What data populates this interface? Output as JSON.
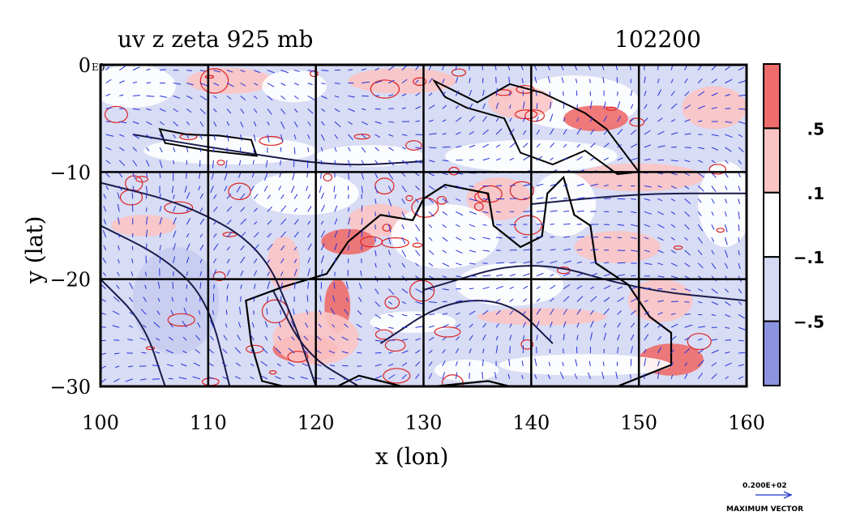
{
  "chart_data": {
    "type": "contour-map",
    "title_left": "uv z zeta 925 mb",
    "title_right": "102200",
    "xlabel": "x (lon)",
    "ylabel": "y (lat)",
    "x_ticks": [
      100,
      110,
      120,
      130,
      140,
      150,
      160
    ],
    "x_tick_labels": [
      "100",
      "110",
      "120",
      "130",
      "140",
      "150",
      "160"
    ],
    "y_ticks": [
      0,
      -10,
      -20,
      -30
    ],
    "y_tick_labels": [
      "0",
      "−10",
      "−20",
      "−30"
    ],
    "y_top_suffix": "E0",
    "xlim": [
      100,
      160
    ],
    "ylim": [
      -30,
      0
    ],
    "colorbar": {
      "levels": [
        {
          "label": "",
          "color": "#ee6c6c"
        },
        {
          "label": ".5",
          "color": "#fbc4c4"
        },
        {
          "label": ".1",
          "color": "#ffffff"
        },
        {
          "label": "−.1",
          "color": "#d6daf4"
        },
        {
          "label": "−.5",
          "color": "#8c94e0"
        }
      ]
    },
    "vector_legend": {
      "magnitude": "0.200E+02",
      "label": "MAXIMUM VECTOR"
    }
  }
}
